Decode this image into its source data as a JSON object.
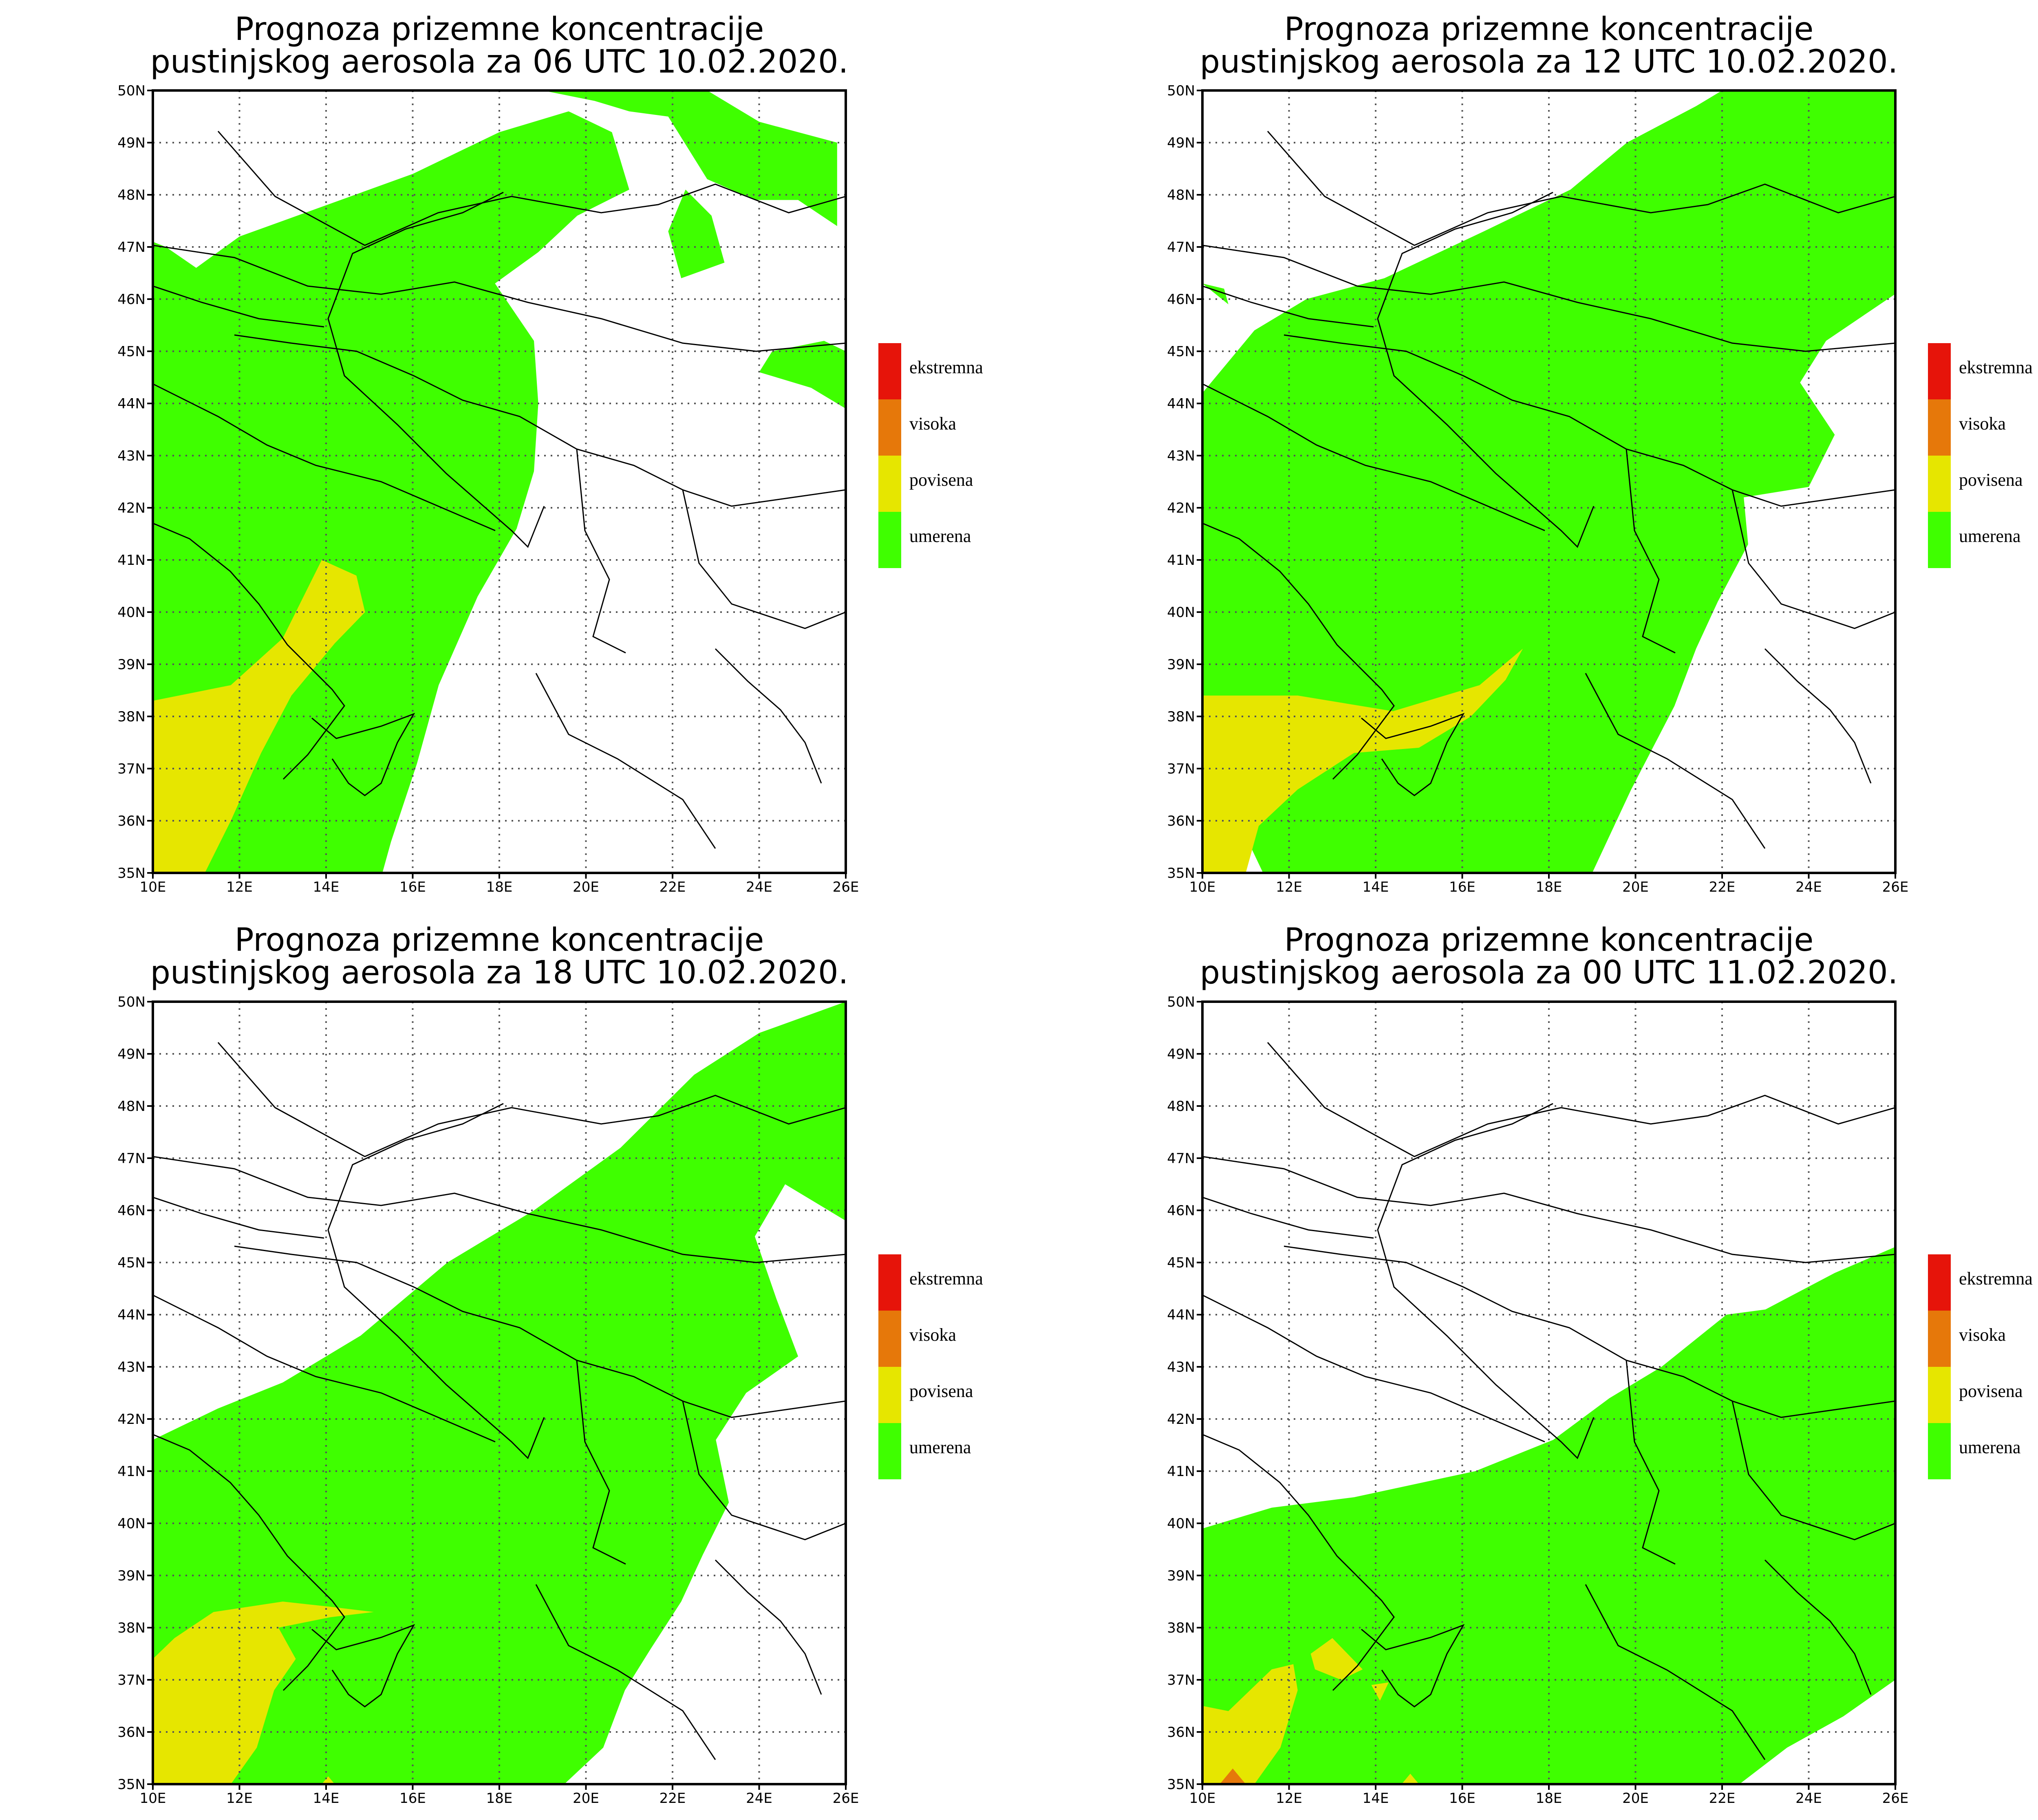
{
  "colors": {
    "umerena": "#3FFF00",
    "povisena": "#E6E600",
    "visoka": "#E6780A",
    "ekstremna": "#E6140A",
    "border": "#000000",
    "grid": "#555555"
  },
  "legend": [
    {
      "key": "ekstremna",
      "label": "ekstremna"
    },
    {
      "key": "visoka",
      "label": "visoka"
    },
    {
      "key": "povisena",
      "label": "povisena"
    },
    {
      "key": "umerena",
      "label": "umerena"
    }
  ],
  "axes": {
    "lon_ticks": [
      "10E",
      "12E",
      "14E",
      "16E",
      "18E",
      "20E",
      "22E",
      "24E",
      "26E"
    ],
    "lat_ticks": [
      "35N",
      "36N",
      "37N",
      "38N",
      "39N",
      "40N",
      "41N",
      "42N",
      "43N",
      "44N",
      "45N",
      "46N",
      "47N",
      "48N",
      "49N",
      "50N"
    ],
    "lon_range": [
      10,
      26
    ],
    "lat_range": [
      35,
      50
    ]
  },
  "panels": [
    {
      "title_line1": "Prognoza prizemne koncentracije",
      "title_line2": "pustinjskog aerosola za 06 UTC 10.02.2020.",
      "regions": [
        {
          "class": "umerena",
          "poly": [
            [
              10,
              47.1
            ],
            [
              10.3,
              47.0
            ],
            [
              11,
              46.6
            ],
            [
              12,
              47.2
            ],
            [
              14,
              47.8
            ],
            [
              16,
              48.4
            ],
            [
              18,
              49.2
            ],
            [
              19.6,
              49.6
            ],
            [
              20.6,
              49.2
            ],
            [
              21,
              48.1
            ],
            [
              19.8,
              47.6
            ],
            [
              18.9,
              46.9
            ],
            [
              17.9,
              46.3
            ],
            [
              18.8,
              45.2
            ],
            [
              18.9,
              44.0
            ],
            [
              18.8,
              42.7
            ],
            [
              18.4,
              41.6
            ],
            [
              17.5,
              40.3
            ],
            [
              16.6,
              38.6
            ],
            [
              16.1,
              37.1
            ],
            [
              15.5,
              35.6
            ],
            [
              15.3,
              35.0
            ],
            [
              10,
              35.0
            ]
          ]
        },
        {
          "class": "umerena",
          "poly": [
            [
              19.0,
              50.0
            ],
            [
              22.8,
              50.0
            ],
            [
              24.0,
              49.4
            ],
            [
              25.8,
              49.0
            ],
            [
              25.8,
              47.4
            ],
            [
              24.9,
              47.9
            ],
            [
              23.9,
              47.9
            ],
            [
              22.8,
              48.3
            ],
            [
              21.9,
              49.5
            ],
            [
              21.0,
              49.6
            ],
            [
              20.2,
              49.8
            ]
          ]
        },
        {
          "class": "umerena",
          "poly": [
            [
              22.3,
              48.1
            ],
            [
              22.9,
              47.6
            ],
            [
              23.2,
              46.7
            ],
            [
              22.2,
              46.4
            ],
            [
              21.9,
              47.3
            ]
          ]
        },
        {
          "class": "umerena",
          "poly": [
            [
              24.0,
              44.6
            ],
            [
              24.3,
              45.0
            ],
            [
              25.5,
              45.2
            ],
            [
              26.0,
              45.0
            ],
            [
              26.0,
              43.9
            ],
            [
              25.2,
              44.3
            ]
          ]
        },
        {
          "class": "povisena",
          "poly": [
            [
              10,
              35.0
            ],
            [
              11.2,
              35.0
            ],
            [
              11.8,
              36.0
            ],
            [
              12.5,
              37.3
            ],
            [
              13.2,
              38.4
            ],
            [
              14.2,
              39.4
            ],
            [
              14.9,
              40.0
            ],
            [
              14.7,
              40.7
            ],
            [
              13.9,
              41.0
            ],
            [
              13.0,
              39.5
            ],
            [
              11.8,
              38.6
            ],
            [
              10,
              38.3
            ]
          ]
        }
      ]
    },
    {
      "title_line1": "Prognoza prizemne koncentracije",
      "title_line2": "pustinjskog aerosola za 12 UTC 10.02.2020.",
      "regions": [
        {
          "class": "umerena",
          "poly": [
            [
              10,
              44.2
            ],
            [
              11.2,
              45.4
            ],
            [
              12.4,
              46.0
            ],
            [
              14.2,
              46.4
            ],
            [
              16.5,
              47.3
            ],
            [
              18.5,
              48.1
            ],
            [
              19.8,
              49.0
            ],
            [
              21.4,
              49.7
            ],
            [
              22.0,
              50.0
            ],
            [
              26.0,
              50.0
            ],
            [
              26.0,
              46.1
            ],
            [
              24.4,
              45.2
            ],
            [
              23.8,
              44.4
            ],
            [
              24.6,
              43.4
            ],
            [
              24.0,
              42.4
            ],
            [
              22.5,
              42.2
            ],
            [
              22.6,
              41.3
            ],
            [
              21.9,
              40.2
            ],
            [
              21.4,
              39.3
            ],
            [
              20.9,
              38.2
            ],
            [
              19.9,
              36.6
            ],
            [
              19.0,
              35.0
            ],
            [
              11.4,
              35.0
            ],
            [
              11.0,
              35.7
            ],
            [
              10.2,
              36.5
            ],
            [
              10,
              36.4
            ]
          ]
        },
        {
          "class": "umerena",
          "poly": [
            [
              10,
              46.3
            ],
            [
              10.6,
              45.9
            ],
            [
              10.5,
              46.2
            ]
          ]
        },
        {
          "class": "povisena",
          "poly": [
            [
              10,
              35.0
            ],
            [
              11.0,
              35.0
            ],
            [
              11.3,
              35.9
            ],
            [
              12.2,
              36.6
            ],
            [
              13.5,
              37.3
            ],
            [
              15.0,
              37.4
            ],
            [
              16.2,
              38.0
            ],
            [
              17.0,
              38.7
            ],
            [
              17.4,
              39.3
            ],
            [
              16.4,
              38.6
            ],
            [
              14.4,
              38.1
            ],
            [
              12.2,
              38.4
            ],
            [
              10,
              38.4
            ]
          ]
        }
      ]
    },
    {
      "title_line1": "Prognoza prizemne koncentracije",
      "title_line2": "pustinjskog aerosola za 18 UTC 10.02.2020.",
      "regions": [
        {
          "class": "umerena",
          "poly": [
            [
              10,
              35.0
            ],
            [
              10,
              41.6
            ],
            [
              11.5,
              42.2
            ],
            [
              13.0,
              42.7
            ],
            [
              14.8,
              43.6
            ],
            [
              16.8,
              45.0
            ],
            [
              18.8,
              46.0
            ],
            [
              20.8,
              47.2
            ],
            [
              22.5,
              48.6
            ],
            [
              24.0,
              49.4
            ],
            [
              26.0,
              50.0
            ],
            [
              26.0,
              45.8
            ],
            [
              24.6,
              46.5
            ],
            [
              23.9,
              45.5
            ],
            [
              24.4,
              44.3
            ],
            [
              24.9,
              43.2
            ],
            [
              23.7,
              42.5
            ],
            [
              23.0,
              41.6
            ],
            [
              23.3,
              40.4
            ],
            [
              22.7,
              39.4
            ],
            [
              22.2,
              38.5
            ],
            [
              21.5,
              37.6
            ],
            [
              20.9,
              36.8
            ],
            [
              20.4,
              35.7
            ],
            [
              19.5,
              35.0
            ]
          ]
        },
        {
          "class": "povisena",
          "poly": [
            [
              10,
              35.0
            ],
            [
              11.8,
              35.0
            ],
            [
              12.4,
              35.7
            ],
            [
              12.8,
              36.8
            ],
            [
              13.3,
              37.4
            ],
            [
              12.9,
              38.0
            ],
            [
              14.1,
              38.2
            ],
            [
              15.1,
              38.3
            ],
            [
              14.1,
              38.4
            ],
            [
              13.0,
              38.5
            ],
            [
              11.4,
              38.3
            ],
            [
              10.5,
              37.8
            ],
            [
              10,
              37.4
            ]
          ]
        },
        {
          "class": "povisena",
          "poly": [
            [
              13.9,
              35.0
            ],
            [
              14.2,
              35.0
            ],
            [
              14.05,
              35.15
            ]
          ]
        }
      ]
    },
    {
      "title_line1": "Prognoza prizemne koncentracije",
      "title_line2": "pustinjskog aerosola za 00 UTC 11.02.2020.",
      "regions": [
        {
          "class": "umerena",
          "poly": [
            [
              10,
              35.0
            ],
            [
              10,
              39.9
            ],
            [
              11.6,
              40.3
            ],
            [
              13.5,
              40.5
            ],
            [
              16.3,
              41.0
            ],
            [
              18.1,
              41.6
            ],
            [
              19.4,
              42.4
            ],
            [
              20.6,
              43.0
            ],
            [
              22.1,
              44.0
            ],
            [
              23.0,
              44.1
            ],
            [
              24.6,
              44.8
            ],
            [
              26.0,
              45.3
            ],
            [
              26.0,
              37.0
            ],
            [
              24.8,
              36.3
            ],
            [
              23.5,
              35.7
            ],
            [
              22.4,
              35.0
            ]
          ]
        },
        {
          "class": "povisena",
          "poly": [
            [
              10,
              35.0
            ],
            [
              11.2,
              35.0
            ],
            [
              11.8,
              35.7
            ],
            [
              12.2,
              36.8
            ],
            [
              12.1,
              37.3
            ],
            [
              11.6,
              37.2
            ],
            [
              10.6,
              36.4
            ],
            [
              10,
              36.5
            ]
          ]
        },
        {
          "class": "povisena",
          "poly": [
            [
              12.5,
              37.5
            ],
            [
              13.0,
              37.8
            ],
            [
              13.7,
              37.2
            ],
            [
              13.2,
              37.0
            ],
            [
              12.6,
              37.2
            ]
          ]
        },
        {
          "class": "povisena",
          "poly": [
            [
              13.9,
              36.9
            ],
            [
              14.3,
              36.95
            ],
            [
              14.1,
              36.6
            ]
          ]
        },
        {
          "class": "povisena",
          "poly": [
            [
              14.6,
              35.0
            ],
            [
              15.0,
              35.0
            ],
            [
              14.8,
              35.2
            ]
          ]
        },
        {
          "class": "visoka",
          "poly": [
            [
              10.4,
              35.0
            ],
            [
              11.0,
              35.0
            ],
            [
              10.7,
              35.3
            ]
          ]
        }
      ]
    }
  ]
}
